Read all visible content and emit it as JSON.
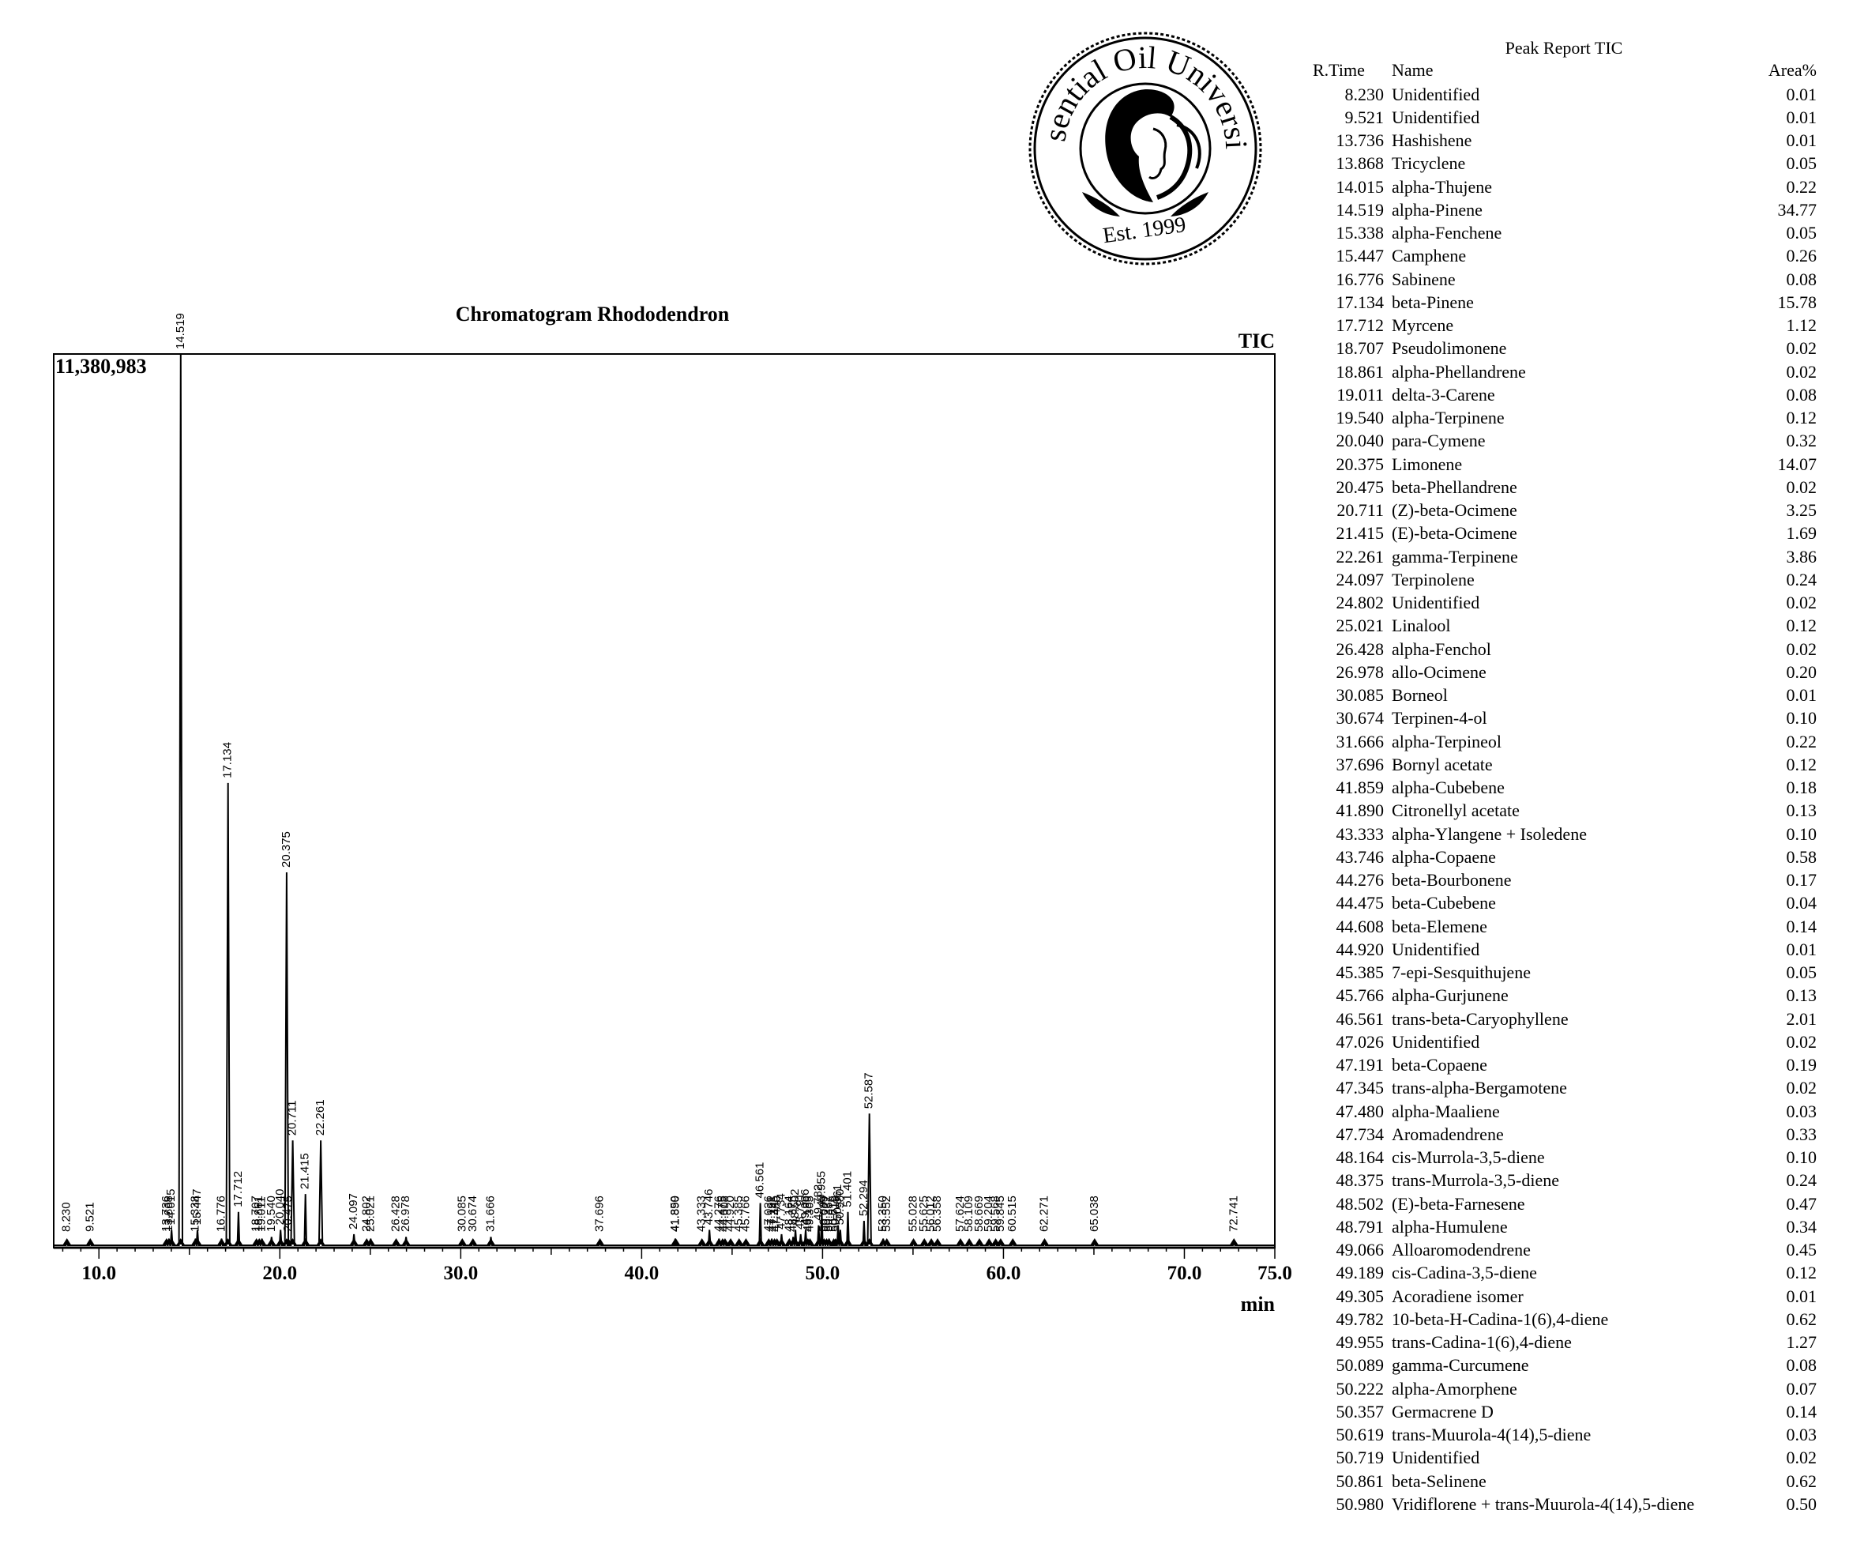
{
  "logo": {
    "text_arc": "Essential Oil University",
    "established": "Est. 1999"
  },
  "chart_data": {
    "type": "line",
    "title": "Chromatogram Rhododendron",
    "signal_label": "TIC",
    "max_intensity_label": "11,380,983",
    "xlabel": "min",
    "ylabel": "",
    "xlim": [
      7.5,
      75.0
    ],
    "ylim": [
      0,
      11380983
    ],
    "x_ticks": [
      "10.0",
      "20.0",
      "30.0",
      "40.0",
      "50.0",
      "60.0",
      "70.0",
      "75.0"
    ],
    "x_tick_values": [
      10,
      20,
      30,
      40,
      50,
      60,
      70,
      75
    ],
    "peaks": [
      {
        "rt": 8.23,
        "label": "8.230",
        "rel": 0.006
      },
      {
        "rt": 9.521,
        "label": "9.521",
        "rel": 0.006
      },
      {
        "rt": 13.736,
        "label": "13.736",
        "rel": 0.007
      },
      {
        "rt": 13.868,
        "label": "13.868",
        "rel": 0.01
      },
      {
        "rt": 14.015,
        "label": "14.015",
        "rel": 0.02
      },
      {
        "rt": 14.519,
        "label": "14.519",
        "rel": 1.0
      },
      {
        "rt": 15.338,
        "label": "15.338",
        "rel": 0.01
      },
      {
        "rt": 15.447,
        "label": "15.447",
        "rel": 0.02
      },
      {
        "rt": 16.776,
        "label": "16.776",
        "rel": 0.01
      },
      {
        "rt": 17.134,
        "label": "17.134",
        "rel": 0.52
      },
      {
        "rt": 17.712,
        "label": "17.712",
        "rel": 0.04
      },
      {
        "rt": 18.707,
        "label": "18.707",
        "rel": 0.006
      },
      {
        "rt": 18.861,
        "label": "18.861",
        "rel": 0.006
      },
      {
        "rt": 19.011,
        "label": "19.011",
        "rel": 0.01
      },
      {
        "rt": 19.54,
        "label": "19.540",
        "rel": 0.012
      },
      {
        "rt": 20.04,
        "label": "20.040",
        "rel": 0.02
      },
      {
        "rt": 20.375,
        "label": "20.375",
        "rel": 0.42
      },
      {
        "rt": 20.475,
        "label": "20.475",
        "rel": 0.006
      },
      {
        "rt": 20.711,
        "label": "20.711",
        "rel": 0.12
      },
      {
        "rt": 21.415,
        "label": "21.415",
        "rel": 0.06
      },
      {
        "rt": 22.261,
        "label": "22.261",
        "rel": 0.12
      },
      {
        "rt": 24.097,
        "label": "24.097",
        "rel": 0.015
      },
      {
        "rt": 24.802,
        "label": "24.802",
        "rel": 0.005
      },
      {
        "rt": 25.021,
        "label": "25.021",
        "rel": 0.01
      },
      {
        "rt": 26.428,
        "label": "26.428",
        "rel": 0.005
      },
      {
        "rt": 26.978,
        "label": "26.978",
        "rel": 0.012
      },
      {
        "rt": 30.085,
        "label": "30.085",
        "rel": 0.004
      },
      {
        "rt": 30.674,
        "label": "30.674",
        "rel": 0.008
      },
      {
        "rt": 31.666,
        "label": "31.666",
        "rel": 0.012
      },
      {
        "rt": 37.696,
        "label": "37.696",
        "rel": 0.006
      },
      {
        "rt": 41.859,
        "label": "41.859",
        "rel": 0.01
      },
      {
        "rt": 41.89,
        "label": "41.890",
        "rel": 0.008
      },
      {
        "rt": 43.333,
        "label": "43.333",
        "rel": 0.006
      },
      {
        "rt": 43.746,
        "label": "43.746",
        "rel": 0.02
      },
      {
        "rt": 44.276,
        "label": "44.276",
        "rel": 0.01
      },
      {
        "rt": 44.475,
        "label": "44.475",
        "rel": 0.005
      },
      {
        "rt": 44.608,
        "label": "44.608",
        "rel": 0.008
      },
      {
        "rt": 44.92,
        "label": "44.920",
        "rel": 0.004
      },
      {
        "rt": 45.385,
        "label": "45.385",
        "rel": 0.005
      },
      {
        "rt": 45.766,
        "label": "45.766",
        "rel": 0.008
      },
      {
        "rt": 46.561,
        "label": "46.561",
        "rel": 0.05
      },
      {
        "rt": 47.026,
        "label": "47.026",
        "rel": 0.004
      },
      {
        "rt": 47.191,
        "label": "47.191",
        "rel": 0.01
      },
      {
        "rt": 47.345,
        "label": "47.345",
        "rel": 0.004
      },
      {
        "rt": 47.48,
        "label": "47.480",
        "rel": 0.005
      },
      {
        "rt": 47.734,
        "label": "47.734",
        "rel": 0.015
      },
      {
        "rt": 48.164,
        "label": "48.164",
        "rel": 0.008
      },
      {
        "rt": 48.375,
        "label": "48.375",
        "rel": 0.012
      },
      {
        "rt": 48.502,
        "label": "48.502",
        "rel": 0.02
      },
      {
        "rt": 48.791,
        "label": "48.791",
        "rel": 0.015
      },
      {
        "rt": 49.066,
        "label": "49.066",
        "rel": 0.02
      },
      {
        "rt": 49.189,
        "label": "49.189",
        "rel": 0.008
      },
      {
        "rt": 49.305,
        "label": "49.305",
        "rel": 0.004
      },
      {
        "rt": 49.782,
        "label": "49.782",
        "rel": 0.025
      },
      {
        "rt": 49.955,
        "label": "49.955",
        "rel": 0.04
      },
      {
        "rt": 50.089,
        "label": "50.089",
        "rel": 0.008
      },
      {
        "rt": 50.222,
        "label": "50.222",
        "rel": 0.007
      },
      {
        "rt": 50.357,
        "label": "50.357",
        "rel": 0.01
      },
      {
        "rt": 50.619,
        "label": "50.619",
        "rel": 0.005
      },
      {
        "rt": 50.719,
        "label": "50.719",
        "rel": 0.004
      },
      {
        "rt": 50.861,
        "label": "50.861",
        "rel": 0.025
      },
      {
        "rt": 50.98,
        "label": "50.980",
        "rel": 0.02
      },
      {
        "rt": 51.401,
        "label": "51.401",
        "rel": 0.04
      },
      {
        "rt": 52.294,
        "label": "52.294",
        "rel": 0.03
      },
      {
        "rt": 52.587,
        "label": "52.587",
        "rel": 0.15
      },
      {
        "rt": 53.35,
        "label": "53.350",
        "rel": 0.01
      },
      {
        "rt": 53.552,
        "label": "53.552",
        "rel": 0.008
      },
      {
        "rt": 55.028,
        "label": "55.028",
        "rel": 0.008
      },
      {
        "rt": 55.625,
        "label": "55.625",
        "rel": 0.006
      },
      {
        "rt": 56.012,
        "label": "56.012",
        "rel": 0.006
      },
      {
        "rt": 56.358,
        "label": "56.358",
        "rel": 0.006
      },
      {
        "rt": 57.624,
        "label": "57.624",
        "rel": 0.006
      },
      {
        "rt": 58.109,
        "label": "58.109",
        "rel": 0.006
      },
      {
        "rt": 58.669,
        "label": "58.669",
        "rel": 0.006
      },
      {
        "rt": 59.204,
        "label": "59.204",
        "rel": 0.006
      },
      {
        "rt": 59.568,
        "label": "59.568",
        "rel": 0.006
      },
      {
        "rt": 59.845,
        "label": "59.845",
        "rel": 0.006
      },
      {
        "rt": 60.515,
        "label": "60.515",
        "rel": 0.006
      },
      {
        "rt": 62.271,
        "label": "62.271",
        "rel": 0.006
      },
      {
        "rt": 65.038,
        "label": "65.038",
        "rel": 0.006
      },
      {
        "rt": 72.741,
        "label": "72.741",
        "rel": 0.005
      }
    ]
  },
  "report": {
    "title": "Peak Report TIC",
    "col_rt": "R.Time",
    "col_name": "Name",
    "col_area": "Area%",
    "rows": [
      {
        "rt": "8.230",
        "name": "Unidentified",
        "area": "0.01"
      },
      {
        "rt": "9.521",
        "name": "Unidentified",
        "area": "0.01"
      },
      {
        "rt": "13.736",
        "name": "Hashishene",
        "area": "0.01"
      },
      {
        "rt": "13.868",
        "name": "Tricyclene",
        "area": "0.05"
      },
      {
        "rt": "14.015",
        "name": "alpha-Thujene",
        "area": "0.22"
      },
      {
        "rt": "14.519",
        "name": "alpha-Pinene",
        "area": "34.77"
      },
      {
        "rt": "15.338",
        "name": "alpha-Fenchene",
        "area": "0.05"
      },
      {
        "rt": "15.447",
        "name": "Camphene",
        "area": "0.26"
      },
      {
        "rt": "16.776",
        "name": "Sabinene",
        "area": "0.08"
      },
      {
        "rt": "17.134",
        "name": "beta-Pinene",
        "area": "15.78"
      },
      {
        "rt": "17.712",
        "name": "Myrcene",
        "area": "1.12"
      },
      {
        "rt": "18.707",
        "name": "Pseudolimonene",
        "area": "0.02"
      },
      {
        "rt": "18.861",
        "name": "alpha-Phellandrene",
        "area": "0.02"
      },
      {
        "rt": "19.011",
        "name": "delta-3-Carene",
        "area": "0.08"
      },
      {
        "rt": "19.540",
        "name": "alpha-Terpinene",
        "area": "0.12"
      },
      {
        "rt": "20.040",
        "name": "para-Cymene",
        "area": "0.32"
      },
      {
        "rt": "20.375",
        "name": "Limonene",
        "area": "14.07"
      },
      {
        "rt": "20.475",
        "name": "beta-Phellandrene",
        "area": "0.02"
      },
      {
        "rt": "20.711",
        "name": "(Z)-beta-Ocimene",
        "area": "3.25"
      },
      {
        "rt": "21.415",
        "name": "(E)-beta-Ocimene",
        "area": "1.69"
      },
      {
        "rt": "22.261",
        "name": "gamma-Terpinene",
        "area": "3.86"
      },
      {
        "rt": "24.097",
        "name": "Terpinolene",
        "area": "0.24"
      },
      {
        "rt": "24.802",
        "name": "Unidentified",
        "area": "0.02"
      },
      {
        "rt": "25.021",
        "name": "Linalool",
        "area": "0.12"
      },
      {
        "rt": "26.428",
        "name": "alpha-Fenchol",
        "area": "0.02"
      },
      {
        "rt": "26.978",
        "name": "allo-Ocimene",
        "area": "0.20"
      },
      {
        "rt": "30.085",
        "name": "Borneol",
        "area": "0.01"
      },
      {
        "rt": "30.674",
        "name": "Terpinen-4-ol",
        "area": "0.10"
      },
      {
        "rt": "31.666",
        "name": "alpha-Terpineol",
        "area": "0.22"
      },
      {
        "rt": "37.696",
        "name": "Bornyl acetate",
        "area": "0.12"
      },
      {
        "rt": "41.859",
        "name": "alpha-Cubebene",
        "area": "0.18"
      },
      {
        "rt": "41.890",
        "name": "Citronellyl acetate",
        "area": "0.13"
      },
      {
        "rt": "43.333",
        "name": "alpha-Ylangene +  Isoledene",
        "area": "0.10"
      },
      {
        "rt": "43.746",
        "name": "alpha-Copaene",
        "area": "0.58"
      },
      {
        "rt": "44.276",
        "name": "beta-Bourbonene",
        "area": "0.17"
      },
      {
        "rt": "44.475",
        "name": "beta-Cubebene",
        "area": "0.04"
      },
      {
        "rt": "44.608",
        "name": "beta-Elemene",
        "area": "0.14"
      },
      {
        "rt": "44.920",
        "name": "Unidentified",
        "area": "0.01"
      },
      {
        "rt": "45.385",
        "name": "7-epi-Sesquithujene",
        "area": "0.05"
      },
      {
        "rt": "45.766",
        "name": "alpha-Gurjunene",
        "area": "0.13"
      },
      {
        "rt": "46.561",
        "name": "trans-beta-Caryophyllene",
        "area": "2.01"
      },
      {
        "rt": "47.026",
        "name": "Unidentified",
        "area": "0.02"
      },
      {
        "rt": "47.191",
        "name": "beta-Copaene",
        "area": "0.19"
      },
      {
        "rt": "47.345",
        "name": "trans-alpha-Bergamotene",
        "area": "0.02"
      },
      {
        "rt": "47.480",
        "name": "alpha-Maaliene",
        "area": "0.03"
      },
      {
        "rt": "47.734",
        "name": "Aromadendrene",
        "area": "0.33"
      },
      {
        "rt": "48.164",
        "name": "cis-Murrola-3,5-diene",
        "area": "0.10"
      },
      {
        "rt": "48.375",
        "name": "trans-Murrola-3,5-diene",
        "area": "0.24"
      },
      {
        "rt": "48.502",
        "name": "(E)-beta-Farnesene",
        "area": "0.47"
      },
      {
        "rt": "48.791",
        "name": "alpha-Humulene",
        "area": "0.34"
      },
      {
        "rt": "49.066",
        "name": "Alloaromodendrene",
        "area": "0.45"
      },
      {
        "rt": "49.189",
        "name": "cis-Cadina-3,5-diene",
        "area": "0.12"
      },
      {
        "rt": "49.305",
        "name": "Acoradiene isomer",
        "area": "0.01"
      },
      {
        "rt": "49.782",
        "name": "10-beta-H-Cadina-1(6),4-diene",
        "area": "0.62"
      },
      {
        "rt": "49.955",
        "name": "trans-Cadina-1(6),4-diene",
        "area": "1.27"
      },
      {
        "rt": "50.089",
        "name": "gamma-Curcumene",
        "area": "0.08"
      },
      {
        "rt": "50.222",
        "name": "alpha-Amorphene",
        "area": "0.07"
      },
      {
        "rt": "50.357",
        "name": "Germacrene D",
        "area": "0.14"
      },
      {
        "rt": "50.619",
        "name": "trans-Muurola-4(14),5-diene",
        "area": "0.03"
      },
      {
        "rt": "50.719",
        "name": "Unidentified",
        "area": "0.02"
      },
      {
        "rt": "50.861",
        "name": "beta-Selinene",
        "area": "0.62"
      },
      {
        "rt": "50.980",
        "name": "Vridiflorene + trans-Muurola-4(14),5-diene",
        "area": "0.50"
      }
    ]
  }
}
